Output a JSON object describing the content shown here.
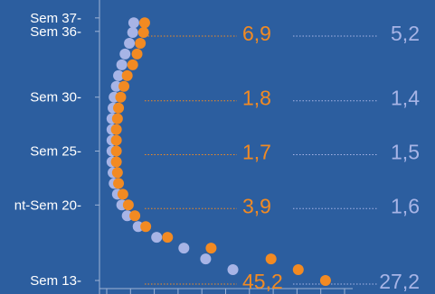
{
  "chart_data": {
    "type": "scatter",
    "title": "",
    "xlabel": "",
    "ylabel": "",
    "colors": {
      "background": "#2c5e9f",
      "series_orange": "#f28a22",
      "series_blue": "#a7b4e6",
      "axis": "#9fb4d6",
      "label": "#ffffff"
    },
    "y_axis": {
      "reversed": true,
      "range": [
        13,
        37
      ],
      "tick_labels": [
        {
          "label": "Sem 37-",
          "week": 37.35
        },
        {
          "label": "Sem 36-",
          "week": 36.1
        },
        {
          "label": "Sem 30-",
          "week": 30
        },
        {
          "label": "Sem 25-",
          "week": 25
        },
        {
          "label": "nt-Sem 20-",
          "week": 20
        },
        {
          "label": "Sem 13-",
          "week": 13
        }
      ]
    },
    "x_range": [
      0,
      22
    ],
    "series": [
      {
        "color_key": "series_orange",
        "points": [
          {
            "week": 36.9,
            "x": 3.4
          },
          {
            "week": 36,
            "x": 3.3
          },
          {
            "week": 35,
            "x": 3.0
          },
          {
            "week": 34,
            "x": 2.7
          },
          {
            "week": 33,
            "x": 2.3
          },
          {
            "week": 32,
            "x": 1.8
          },
          {
            "week": 31,
            "x": 1.5
          },
          {
            "week": 30,
            "x": 1.2
          },
          {
            "week": 29,
            "x": 1.0
          },
          {
            "week": 28,
            "x": 0.9
          },
          {
            "week": 27,
            "x": 0.8
          },
          {
            "week": 26,
            "x": 0.8
          },
          {
            "week": 25,
            "x": 0.8
          },
          {
            "week": 24,
            "x": 0.8
          },
          {
            "week": 23,
            "x": 0.9
          },
          {
            "week": 22,
            "x": 1.0
          },
          {
            "week": 21,
            "x": 1.4
          },
          {
            "week": 20,
            "x": 1.9
          },
          {
            "week": 19,
            "x": 2.5
          },
          {
            "week": 18,
            "x": 3.5
          },
          {
            "week": 17,
            "x": 5.5
          },
          {
            "week": 16,
            "x": 9.5
          },
          {
            "week": 15,
            "x": 15.0
          },
          {
            "week": 14,
            "x": 17.5
          },
          {
            "week": 13,
            "x": 20.0
          }
        ]
      },
      {
        "color_key": "series_blue",
        "points": [
          {
            "week": 36.9,
            "x": 2.4
          },
          {
            "week": 36,
            "x": 2.3
          },
          {
            "week": 35,
            "x": 2.0
          },
          {
            "week": 34,
            "x": 1.6
          },
          {
            "week": 33,
            "x": 1.3
          },
          {
            "week": 32,
            "x": 1.0
          },
          {
            "week": 31,
            "x": 0.8
          },
          {
            "week": 30,
            "x": 0.6
          },
          {
            "week": 29,
            "x": 0.5
          },
          {
            "week": 28,
            "x": 0.4
          },
          {
            "week": 27,
            "x": 0.4
          },
          {
            "week": 26,
            "x": 0.4
          },
          {
            "week": 25,
            "x": 0.4
          },
          {
            "week": 24,
            "x": 0.4
          },
          {
            "week": 23,
            "x": 0.5
          },
          {
            "week": 22,
            "x": 0.6
          },
          {
            "week": 21,
            "x": 0.9
          },
          {
            "week": 20,
            "x": 1.3
          },
          {
            "week": 19,
            "x": 1.8
          },
          {
            "week": 18,
            "x": 2.8
          },
          {
            "week": 17,
            "x": 4.5
          },
          {
            "week": 16,
            "x": 7.0
          },
          {
            "week": 15,
            "x": 9.0
          },
          {
            "week": 14,
            "x": 11.5
          }
        ]
      }
    ],
    "annotations": [
      {
        "week": 36,
        "orange": "6,9",
        "blue": "5,2"
      },
      {
        "week": 30,
        "orange": "1,8",
        "blue": "1,4"
      },
      {
        "week": 25,
        "orange": "1,7",
        "blue": "1,5"
      },
      {
        "week": 20,
        "orange": "3,9",
        "blue": "1,6"
      },
      {
        "week": 13,
        "orange": "45,2",
        "blue": "27,2"
      }
    ]
  }
}
